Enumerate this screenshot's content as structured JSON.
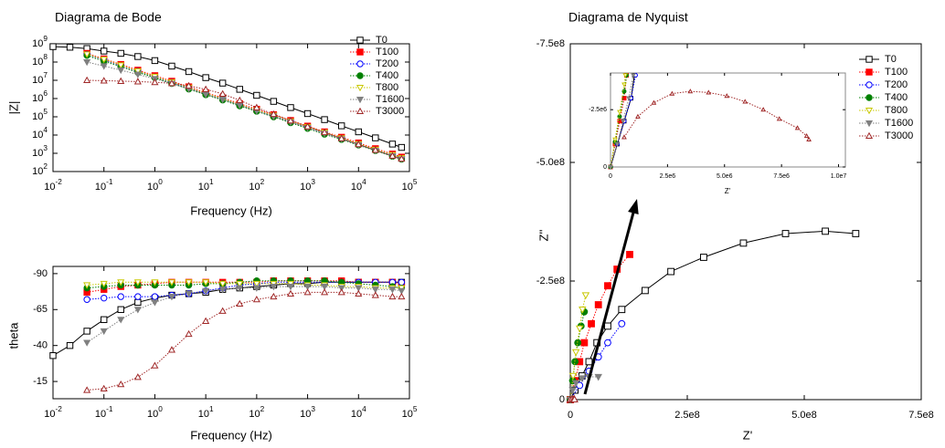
{
  "chart_data": [
    {
      "type": "line",
      "title": "Diagrama de Bode",
      "xlabel": "Frequency (Hz)",
      "ylabel": "|Z|",
      "xscale": "log",
      "yscale": "log",
      "legend": "upper right",
      "xlim": [
        0.01,
        100000
      ],
      "ylim": [
        100,
        1000000000
      ],
      "xticks": [
        {
          "value": 0.01,
          "label": "10",
          "exp": "-2"
        },
        {
          "value": 0.1,
          "label": "10",
          "exp": "-1"
        },
        {
          "value": 1,
          "label": "10",
          "exp": "0"
        },
        {
          "value": 10,
          "label": "10",
          "exp": "1"
        },
        {
          "value": 100,
          "label": "10",
          "exp": "2"
        },
        {
          "value": 1000,
          "label": "10",
          "exp": "3"
        },
        {
          "value": 10000,
          "label": "10",
          "exp": "4"
        },
        {
          "value": 100000,
          "label": "10",
          "exp": "5"
        }
      ],
      "yticks": [
        {
          "value": 100,
          "label": "10",
          "exp": "2"
        },
        {
          "value": 1000,
          "label": "10",
          "exp": "3"
        },
        {
          "value": 10000,
          "label": "10",
          "exp": "4"
        },
        {
          "value": 100000,
          "label": "10",
          "exp": "5"
        },
        {
          "value": 1000000,
          "label": "10",
          "exp": "6"
        },
        {
          "value": 10000000,
          "label": "10",
          "exp": "7"
        },
        {
          "value": 100000000,
          "label": "10",
          "exp": "8"
        },
        {
          "value": 1000000000,
          "label": "10",
          "exp": "9"
        }
      ],
      "x": [
        0.01,
        0.0215,
        0.0464,
        0.1,
        0.215,
        0.464,
        1,
        2.15,
        4.64,
        10,
        21.5,
        46.4,
        100,
        215,
        464,
        1000,
        2150,
        4640,
        10000,
        21500,
        46400,
        70000
      ],
      "series": [
        {
          "name": "T0",
          "color": "#000000",
          "marker": "square-open",
          "values": [
            700000000.0,
            650000000.0,
            550000000.0,
            400000000.0,
            300000000.0,
            200000000.0,
            120000000.0,
            60000000.0,
            30000000.0,
            14000000.0,
            7000000.0,
            3200000.0,
            1500000.0,
            700000.0,
            320000.0,
            150000.0,
            70000.0,
            32000.0,
            15000.0,
            7000.0,
            3200.0,
            2100.0
          ]
        },
        {
          "name": "T100",
          "color": "#ff0000",
          "marker": "square",
          "values": [
            null,
            null,
            300000000.0,
            150000000.0,
            74000000.0,
            36000000.0,
            18000000.0,
            8900000.0,
            4400000.0,
            2100000.0,
            1100000.0,
            520000.0,
            260000.0,
            130000.0,
            63000.0,
            31000.0,
            15000.0,
            7600.0,
            3700.0,
            1800.0,
            910,
            620
          ]
        },
        {
          "name": "T200",
          "color": "#0000ff",
          "marker": "circle-open",
          "values": [
            null,
            null,
            260000000.0,
            130000000.0,
            63000000.0,
            31000000.0,
            15000000.0,
            7600000.0,
            3700000.0,
            1800000.0,
            940000.0,
            440000.0,
            220000.0,
            110000.0,
            54000.0,
            26000.0,
            13000.0,
            6500.0,
            3100.0,
            1500.0,
            770,
            530
          ]
        },
        {
          "name": "T400",
          "color": "#008000",
          "marker": "circle",
          "values": [
            null,
            null,
            230000000.0,
            110000000.0,
            56000000.0,
            27000000.0,
            14000000.0,
            6700000.0,
            3300000.0,
            1600000.0,
            830000.0,
            390000.0,
            200000.0,
            98000.0,
            47000.0,
            23000.0,
            11000.0,
            5700.0,
            2800.0,
            1400.0,
            680,
            470
          ]
        },
        {
          "name": "T800",
          "color": "#c8c800",
          "marker": "tri-down-open",
          "values": [
            null,
            null,
            270000000.0,
            140000000.0,
            67000000.0,
            32000000.0,
            16000000.0,
            8000000.0,
            4000000.0,
            1900000.0,
            990000.0,
            470000.0,
            230000.0,
            120000.0,
            57000.0,
            28000.0,
            14000.0,
            6800.0,
            3300.0,
            1600.0,
            820,
            560
          ]
        },
        {
          "name": "T1600",
          "color": "#808080",
          "marker": "tri-down",
          "values": [
            null,
            null,
            100000000.0,
            60000000.0,
            36000000.0,
            21000000.0,
            12000000.0,
            6500000.0,
            3400000.0,
            1700000.0,
            880000.0,
            430000.0,
            210000.0,
            105000.0,
            51000.0,
            25000.0,
            12000.0,
            6000.0,
            2900.0,
            1400.0,
            700,
            480
          ]
        },
        {
          "name": "T3000",
          "color": "#a02828",
          "marker": "tri-up-open",
          "values": [
            null,
            null,
            10000000.0,
            9500000.0,
            9000000.0,
            8500000.0,
            7800000.0,
            6800000.0,
            5000000.0,
            3200000.0,
            1800000.0,
            800000.0,
            320000.0,
            140000.0,
            62000.0,
            29000.0,
            14000.0,
            6500.0,
            3100.0,
            1500.0,
            720,
            500
          ]
        }
      ]
    },
    {
      "type": "line",
      "xlabel": "Frequency (Hz)",
      "ylabel": "theta",
      "xscale": "log",
      "xlim": [
        0.01,
        100000
      ],
      "ylim": [
        -3,
        -95
      ],
      "xticks": [
        {
          "value": 0.01,
          "label": "10",
          "exp": "-2"
        },
        {
          "value": 0.1,
          "label": "10",
          "exp": "-1"
        },
        {
          "value": 1,
          "label": "10",
          "exp": "0"
        },
        {
          "value": 10,
          "label": "10",
          "exp": "1"
        },
        {
          "value": 100,
          "label": "10",
          "exp": "2"
        },
        {
          "value": 1000,
          "label": "10",
          "exp": "3"
        },
        {
          "value": 10000,
          "label": "10",
          "exp": "4"
        },
        {
          "value": 100000,
          "label": "10",
          "exp": "5"
        }
      ],
      "yticks": [
        -90,
        -65,
        -40,
        -15
      ],
      "x": [
        0.01,
        0.0215,
        0.0464,
        0.1,
        0.215,
        0.464,
        1,
        2.15,
        4.64,
        10,
        21.5,
        46.4,
        100,
        215,
        464,
        1000,
        2150,
        4640,
        10000,
        21500,
        46400,
        70000
      ],
      "series": [
        {
          "color": "#000000",
          "marker": "square-open",
          "values": [
            -33,
            -40,
            -50,
            -58,
            -65,
            -70,
            -73,
            -75,
            -76,
            -77,
            -79,
            -80,
            -81,
            -82,
            -83,
            -83,
            -84,
            -84,
            -84,
            -84,
            -84,
            -84
          ]
        },
        {
          "color": "#ff0000",
          "marker": "square",
          "values": [
            null,
            null,
            -77,
            -79,
            -81,
            -82,
            -83,
            -84,
            -84,
            -84,
            -84,
            -84,
            -84,
            -85,
            -85,
            -85,
            -85,
            -85,
            -84,
            -84,
            -84,
            -83
          ]
        },
        {
          "color": "#0000ff",
          "marker": "circle-open",
          "values": [
            null,
            null,
            -72,
            -73,
            -74,
            -74,
            -74,
            -75,
            -76,
            -78,
            -80,
            -82,
            -83,
            -84,
            -84,
            -84,
            -84,
            -84,
            -84,
            -84,
            -84,
            -84
          ]
        },
        {
          "color": "#008000",
          "marker": "circle",
          "values": [
            null,
            null,
            -80,
            -81,
            -82,
            -82,
            -82,
            -82,
            -82,
            -83,
            -83,
            -84,
            -85,
            -85,
            -85,
            -85,
            -85,
            -84,
            -83,
            -82,
            -81,
            -80
          ]
        },
        {
          "color": "#c8c800",
          "marker": "tri-down-open",
          "values": [
            null,
            null,
            -82,
            -83,
            -84,
            -84,
            -84,
            -84,
            -84,
            -84,
            -83,
            -83,
            -83,
            -83,
            -83,
            -82,
            -82,
            -81,
            -81,
            -80,
            -80,
            -80
          ]
        },
        {
          "color": "#808080",
          "marker": "tri-down",
          "values": [
            null,
            null,
            -42,
            -50,
            -58,
            -65,
            -70,
            -74,
            -76,
            -78,
            -79,
            -80,
            -80,
            -81,
            -81,
            -81,
            -81,
            -80,
            -80,
            -79,
            -79,
            -78
          ]
        },
        {
          "color": "#a02828",
          "marker": "tri-up-open",
          "values": [
            null,
            null,
            -9,
            -10,
            -13,
            -18,
            -26,
            -37,
            -48,
            -57,
            -64,
            -69,
            -72,
            -74,
            -76,
            -77,
            -77,
            -77,
            -76,
            -75,
            -74,
            -74
          ]
        }
      ]
    },
    {
      "type": "line",
      "title": "Diagrama de Nyquist",
      "xlabel": "Z'",
      "ylabel": "Z''",
      "legend": "upper right",
      "xlim": [
        0,
        750000000
      ],
      "ylim": [
        0,
        -750000000
      ],
      "xticks": [
        0,
        {
          "value": 250000000,
          "label": "2.5e8"
        },
        {
          "value": 500000000,
          "label": "5.0e8"
        },
        {
          "value": 750000000,
          "label": "7.5e8"
        }
      ],
      "yticks": [
        0,
        {
          "value": -250000000,
          "label": "-2.5e8"
        },
        {
          "value": -500000000,
          "label": "-5.0e8"
        },
        {
          "value": -750000000,
          "label": "-7.5e8"
        }
      ],
      "series": [
        {
          "name": "T0",
          "color": "#000000",
          "marker": "square-open",
          "x": [
            0,
            10000000.0,
            25000000.0,
            40000000.0,
            57000000.0,
            80000000.0,
            110000000.0,
            160000000.0,
            215000000.0,
            285000000.0,
            370000000.0,
            460000000.0,
            545000000.0,
            610000000.0
          ],
          "values": [
            0,
            -20000000.0,
            -50000000.0,
            -80000000.0,
            -120000000.0,
            -155000000.0,
            -190000000.0,
            -230000000.0,
            -270000000.0,
            -300000000.0,
            -330000000.0,
            -350000000.0,
            -355000000.0,
            -350000000.0
          ]
        },
        {
          "name": "T100",
          "color": "#ff0000",
          "marker": "square",
          "x": [
            0,
            10000000.0,
            20000000.0,
            30000000.0,
            45000000.0,
            60000000.0,
            80000000.0,
            100000000.0,
            127000000.0
          ],
          "values": [
            0,
            -40000000.0,
            -80000000.0,
            -120000000.0,
            -160000000.0,
            -200000000.0,
            -240000000.0,
            -275000000.0,
            -306000000.0
          ]
        },
        {
          "name": "T200",
          "color": "#0000ff",
          "marker": "circle-open",
          "x": [
            0,
            20000000.0,
            40000000.0,
            60000000.0,
            80000000.0,
            110000000.0
          ],
          "values": [
            0,
            -30000000.0,
            -60000000.0,
            -90000000.0,
            -120000000.0,
            -160000000.0
          ]
        },
        {
          "name": "T400",
          "color": "#008000",
          "marker": "circle",
          "x": [
            0,
            5000000.0,
            10000000.0,
            16000000.0,
            23000000.0,
            30000000.0
          ],
          "values": [
            0,
            -40000000.0,
            -80000000.0,
            -120000000.0,
            -155000000.0,
            -185000000.0
          ]
        },
        {
          "name": "T800",
          "color": "#c8c800",
          "marker": "tri-down-open",
          "x": [
            0,
            6000000.0,
            12000000.0,
            20000000.0,
            26000000.0,
            33000000.0
          ],
          "values": [
            0,
            -50000000.0,
            -100000000.0,
            -150000000.0,
            -190000000.0,
            -220000000.0
          ]
        },
        {
          "name": "T1600",
          "color": "#808080",
          "marker": "tri-down",
          "x": [
            0,
            5000000.0,
            12000000.0,
            25000000.0,
            40000000.0,
            60000000.0
          ],
          "values": [
            0,
            -20000000.0,
            -35000000.0,
            -45000000.0,
            -48000000.0,
            -48000000.0
          ]
        },
        {
          "name": "T3000",
          "color": "#a02828",
          "marker": "tri-up-open",
          "x": [
            0,
            4000000.0,
            8000000.0,
            9000000.0
          ],
          "values": [
            0,
            -1000000.0,
            -2000000.0,
            -500000.0
          ]
        }
      ]
    },
    {
      "type": "line",
      "xlabel": "Z'",
      "xlim": [
        0,
        10300000
      ],
      "ylim": [
        0,
        -4100000
      ],
      "xticks": [
        0,
        {
          "value": 2500000,
          "label": "2.5e6"
        },
        {
          "value": 5000000,
          "label": "5.0e6"
        },
        {
          "value": 7500000,
          "label": "7.5e6"
        },
        {
          "value": 10000000,
          "label": "1.0e7"
        }
      ],
      "yticks": [
        0,
        {
          "value": -2500000,
          "label": "-2.5e6"
        }
      ],
      "series": [
        {
          "color": "#000000",
          "marker": "square-open",
          "x": [
            0,
            300000.0,
            600000.0,
            900000.0,
            1050000.0
          ],
          "values": [
            0,
            -1000000.0,
            -2000000.0,
            -3000000.0,
            -4000000.0
          ]
        },
        {
          "color": "#ff0000",
          "marker": "square",
          "x": [
            0,
            200000.0,
            400000.0,
            600000.0,
            700000.0
          ],
          "values": [
            0,
            -1000000.0,
            -2000000.0,
            -3000000.0,
            -4000000.0
          ]
        },
        {
          "color": "#0000ff",
          "marker": "circle-open",
          "x": [
            0,
            300000.0,
            600000.0,
            900000.0,
            1100000.0
          ],
          "values": [
            0,
            -1000000.0,
            -2000000.0,
            -3000000.0,
            -4000000.0
          ]
        },
        {
          "color": "#008000",
          "marker": "circle",
          "x": [
            0,
            200000.0,
            400000.0,
            600000.0,
            700000.0
          ],
          "values": [
            0,
            -1100000.0,
            -2200000.0,
            -3300000.0,
            -4000000.0
          ]
        },
        {
          "color": "#c8c800",
          "marker": "tri-down-open",
          "x": [
            0,
            200000.0,
            400000.0,
            600000.0,
            650000.0
          ],
          "values": [
            0,
            -1200000.0,
            -2400000.0,
            -3600000.0,
            -4000000.0
          ]
        },
        {
          "color": "#808080",
          "marker": "tri-down",
          "x": [
            0,
            300000.0,
            550000.0,
            800000.0,
            1000000.0
          ],
          "values": [
            0,
            -1000000.0,
            -2000000.0,
            -3000000.0,
            -4000000.0
          ]
        },
        {
          "color": "#a02828",
          "marker": "tri-up-open",
          "x": [
            600000.0,
            1200000.0,
            1900000.0,
            2700000.0,
            3500000.0,
            4300000.0,
            5100000.0,
            5900000.0,
            6700000.0,
            7400000.0,
            8200000.0,
            8600000.0,
            8700000.0
          ],
          "values": [
            -1300000.0,
            -2200000.0,
            -2800000.0,
            -3200000.0,
            -3300000.0,
            -3250000.0,
            -3100000.0,
            -2850000.0,
            -2500000.0,
            -2100000.0,
            -1700000.0,
            -1350000.0,
            -1200000.0
          ]
        }
      ]
    }
  ]
}
